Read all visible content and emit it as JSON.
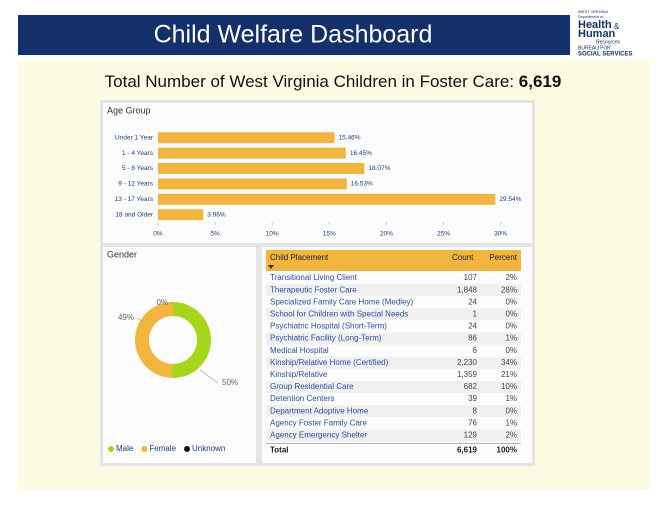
{
  "header": {
    "title": "Child Welfare Dashboard",
    "logo": {
      "state": "WEST VIRGINIA",
      "dept": "Department of",
      "line1": "Health",
      "amp": "&",
      "line2": "Human",
      "line3": "Resources",
      "bureau1": "BUREAU FOR",
      "bureau2": "SOCIAL SERVICES"
    }
  },
  "summary": {
    "label": "Total Number of West Virginia Children in Foster Care: ",
    "value": "6,619"
  },
  "chart_data": [
    {
      "type": "hbar",
      "title": "Age Group",
      "categories": [
        "Under 1 Year",
        "1 - 4 Years",
        "5 - 8 Years",
        "9 - 12 Years",
        "13 - 17 Years",
        "18 and Older"
      ],
      "values": [
        15.46,
        16.45,
        18.07,
        16.53,
        29.54,
        3.96
      ],
      "value_labels": [
        "15.46%",
        "16.45%",
        "18.07%",
        "16.53%",
        "29.54%",
        "3.96%"
      ],
      "color": "#f2b53f",
      "xlim": [
        0,
        31
      ],
      "xticks": [
        {
          "value": 0,
          "label": "0%"
        },
        {
          "value": 5,
          "label": "5%"
        },
        {
          "value": 10,
          "label": "10%"
        },
        {
          "value": 15,
          "label": "15%"
        },
        {
          "value": 20,
          "label": "20%"
        },
        {
          "value": 25,
          "label": "25%"
        },
        {
          "value": 30,
          "label": "30%"
        }
      ]
    },
    {
      "type": "donut",
      "title": "Gender",
      "categories": [
        "Male",
        "Female",
        "Unknown"
      ],
      "values": [
        50,
        49,
        0
      ],
      "value_labels": [
        "50%",
        "49%",
        "0%"
      ],
      "colors": [
        "#a5d61a",
        "#f2b53f",
        "#111111"
      ]
    }
  ],
  "table": {
    "header": [
      "Child Placement",
      "Count",
      "Percent"
    ],
    "rows": [
      [
        "Transitional Living Client",
        "107",
        "2%"
      ],
      [
        "Therapeutic Foster Care",
        "1,848",
        "28%"
      ],
      [
        "Specialized Family Care Home (Medley)",
        "24",
        "0%"
      ],
      [
        "School for Children with Special Needs",
        "1",
        "0%"
      ],
      [
        "Psychiatric Hospital (Short-Term)",
        "24",
        "0%"
      ],
      [
        "Psychiatric Facility (Long-Term)",
        "86",
        "1%"
      ],
      [
        "Medical Hospital",
        "6",
        "0%"
      ],
      [
        "Kinship/Relative Home (Certified)",
        "2,230",
        "34%"
      ],
      [
        "Kinship/Relative",
        "1,359",
        "21%"
      ],
      [
        "Group Residential Care",
        "682",
        "10%"
      ],
      [
        "Detention Centers",
        "39",
        "1%"
      ],
      [
        "Department Adoptive Home",
        "8",
        "0%"
      ],
      [
        "Agency Foster Family Care",
        "76",
        "1%"
      ],
      [
        "Agency Emergency Shelter",
        "129",
        "2%"
      ]
    ],
    "total": [
      "Total",
      "6,619",
      "100%"
    ]
  }
}
